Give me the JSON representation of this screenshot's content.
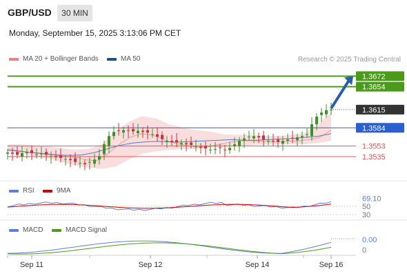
{
  "header": {
    "symbol": "GBP/USD",
    "interval": "30 MIN",
    "datetime": "Monday, September 15, 2025 3:13:06 PM CET"
  },
  "legend": {
    "main": [
      {
        "label": "MA 20 + Bollinger Bands",
        "color": "#f08080"
      },
      {
        "label": "MA 50",
        "color": "#1f4e8c"
      }
    ],
    "rsi": [
      {
        "label": "RSI",
        "color": "#5b7fd6"
      },
      {
        "label": "9MA",
        "color": "#cc0000"
      }
    ],
    "macd": [
      {
        "label": "MACD",
        "color": "#5b7fd6"
      },
      {
        "label": "MACD Signal",
        "color": "#4c9a1a"
      }
    ]
  },
  "credit": "Research © 2025 Trading Central",
  "colors": {
    "green_level": "#4c9a1a",
    "blue_level": "#2a5fd1",
    "red_level": "#e05555",
    "current_price": "#333333",
    "arrow": "#2a5fa8",
    "candle_up": "#3f8f2a",
    "candle_down": "#cc3333"
  },
  "chart_data": [
    {
      "type": "candlestick",
      "title": "GBP/USD 30 MIN",
      "x_labels": [
        "Sep 11",
        "Sep 12",
        "Sep 14",
        "Sep 16"
      ],
      "ylim": [
        1.3508,
        1.369
      ],
      "levels": [
        {
          "label": "1.3672",
          "value": 1.3672,
          "kind": "resistance",
          "color": "#4c9a1a"
        },
        {
          "label": "1.3654",
          "value": 1.3654,
          "kind": "resistance",
          "color": "#4c9a1a"
        },
        {
          "label": "1.3615",
          "value": 1.3615,
          "kind": "current",
          "color": "#333333"
        },
        {
          "label": "1.3584",
          "value": 1.3584,
          "kind": "pivot",
          "color": "#2a5fd1"
        },
        {
          "label": "1.3553",
          "value": 1.3553,
          "kind": "support",
          "color": "#e05555"
        },
        {
          "label": "1.3535",
          "value": 1.3535,
          "kind": "support",
          "color": "#e05555"
        }
      ],
      "close_series": [
        1.3542,
        1.354,
        1.3538,
        1.3541,
        1.3543,
        1.3541,
        1.3539,
        1.354,
        1.3538,
        1.3536,
        1.3534,
        1.3533,
        1.3531,
        1.3529,
        1.3526,
        1.3524,
        1.3522,
        1.3526,
        1.353,
        1.3536,
        1.3556,
        1.357,
        1.3577,
        1.3579,
        1.358,
        1.3579,
        1.3578,
        1.3579,
        1.3577,
        1.3576,
        1.3573,
        1.3569,
        1.3565,
        1.3562,
        1.356,
        1.3559,
        1.3558,
        1.3556,
        1.3555,
        1.3552,
        1.355,
        1.3549,
        1.3547,
        1.3548,
        1.355,
        1.3546,
        1.355,
        1.3556,
        1.3562,
        1.3566,
        1.3569,
        1.357,
        1.3568,
        1.3564,
        1.3562,
        1.3561,
        1.356,
        1.3562,
        1.3564,
        1.3566,
        1.3568,
        1.357,
        1.3573,
        1.359,
        1.3603,
        1.361,
        1.3614,
        1.3615
      ],
      "ma20_series": [
        1.3548,
        1.3545,
        1.3542,
        1.354,
        1.3538,
        1.3536,
        1.3534,
        1.353,
        1.3528,
        1.354,
        1.3556,
        1.3568,
        1.3574,
        1.3572,
        1.3564,
        1.3558,
        1.3554,
        1.3551,
        1.3552,
        1.3556,
        1.356,
        1.3562,
        1.3562,
        1.3561,
        1.356,
        1.3561,
        1.3562,
        1.3564,
        1.3568,
        1.358
      ],
      "ma50_series": [
        1.3546,
        1.3544,
        1.3542,
        1.354,
        1.3538,
        1.3537,
        1.3538,
        1.3542,
        1.3548,
        1.3554,
        1.3558,
        1.356,
        1.3561,
        1.356,
        1.356,
        1.3561,
        1.3562,
        1.3563,
        1.3564,
        1.3563,
        1.3563,
        1.3564,
        1.3565,
        1.3566,
        1.3568,
        1.357,
        1.3574
      ],
      "bb_upper": [
        1.3556,
        1.3556,
        1.3554,
        1.3553,
        1.3549,
        1.3547,
        1.3548,
        1.3556,
        1.3578,
        1.3594,
        1.3604,
        1.36,
        1.359,
        1.3584,
        1.358,
        1.3578,
        1.3573,
        1.3572,
        1.3572,
        1.357,
        1.357,
        1.3572,
        1.3574,
        1.359,
        1.361
      ],
      "bb_lower": [
        1.3544,
        1.354,
        1.3536,
        1.3532,
        1.3526,
        1.352,
        1.3516,
        1.3514,
        1.3518,
        1.353,
        1.354,
        1.3544,
        1.3546,
        1.3548,
        1.3548,
        1.355,
        1.3552,
        1.3552,
        1.3554,
        1.3556,
        1.3556,
        1.3556,
        1.3556,
        1.3558,
        1.3562
      ],
      "forecast_arrow": {
        "from": 1.3617,
        "to": 1.3672
      }
    },
    {
      "type": "line",
      "title": "RSI",
      "series": [
        {
          "name": "RSI",
          "color": "#5b7fd6"
        },
        {
          "name": "9MA",
          "color": "#cc0000"
        }
      ],
      "levels": [
        {
          "label": "69.10",
          "value": 69.1
        },
        {
          "label": "50",
          "value": 50
        },
        {
          "label": "30",
          "value": 30
        }
      ],
      "last_value": 69.1
    },
    {
      "type": "line",
      "title": "MACD",
      "series": [
        {
          "name": "MACD",
          "color": "#5b7fd6"
        },
        {
          "name": "MACD Signal",
          "color": "#4c9a1a"
        }
      ],
      "levels": [
        {
          "label": "0.00",
          "value": 0.0
        },
        {
          "label": "0",
          "value": 0
        }
      ],
      "last_value": 0.0
    }
  ]
}
